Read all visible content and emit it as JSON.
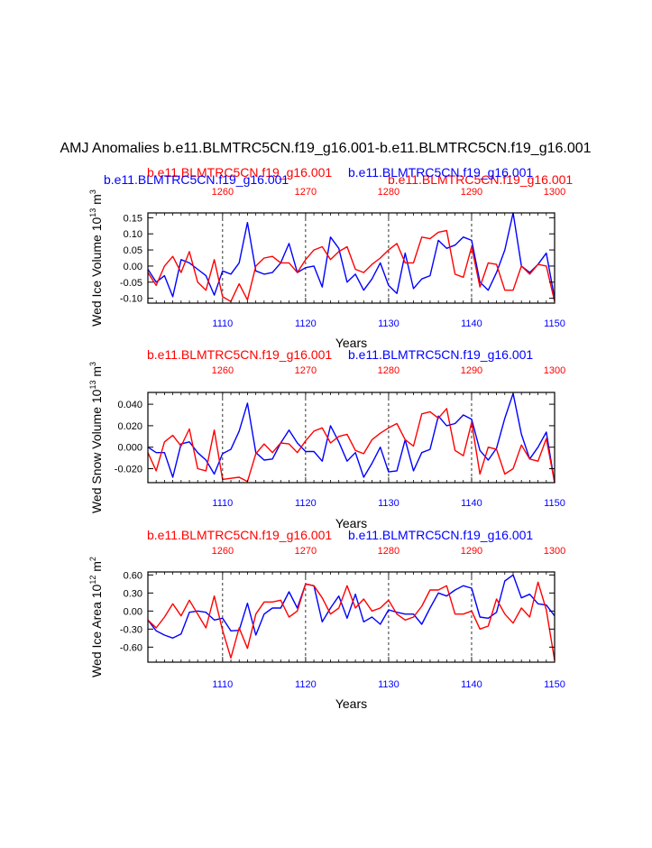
{
  "figure": {
    "title": "AMJ Anomalies b.e11.BLMTRC5CN.f19_g16.001-b.e11.BLMTRC5CN.f19_g16.001",
    "xlabel": "Years"
  },
  "colors": {
    "series_blue": "#0000ff",
    "series_red": "#ff0000",
    "axis": "#000000",
    "grid": "#000000"
  },
  "chart_data": [
    {
      "type": "line",
      "name": "ice-volume",
      "ylabel": "Wed Ice Volume 10",
      "ylabel_sup": "13",
      "ylabel_unit": " m",
      "ylabel_unit_sup": "3",
      "xlabel": "Years",
      "ylim": [
        -0.115,
        0.165
      ],
      "yticks": [
        -0.1,
        -0.05,
        0.0,
        0.05,
        0.1,
        0.15
      ],
      "yticklabels": [
        "-0.10",
        "-0.05",
        "0.00",
        "0.05",
        "0.10",
        "0.15"
      ],
      "bottom_axis": {
        "xlim": [
          1101,
          1150
        ],
        "ticks": [
          1110,
          1120,
          1130,
          1140,
          1150
        ],
        "labels": [
          "1110",
          "1120",
          "1130",
          "1140",
          "1150"
        ]
      },
      "top_axis": {
        "xlim": [
          1251,
          1300
        ],
        "ticks": [
          1260,
          1270,
          1280,
          1290,
          1300
        ],
        "labels": [
          "1260",
          "1270",
          "1280",
          "1290",
          "1300"
        ]
      },
      "gridlines_x": [
        1110,
        1120,
        1130,
        1140
      ],
      "legend": {
        "red": "b.e11.BLMTRC5CN.f19_g16.001",
        "blue": "b.e11.BLMTRC5CN.f19_g16.001"
      },
      "series": [
        {
          "name": "b.e11.BLMTRC5CN.f19_g16.001",
          "color": "blue",
          "axis": "bottom",
          "values": [
            -0.01,
            -0.05,
            -0.03,
            -0.095,
            0.02,
            0.01,
            -0.01,
            -0.03,
            -0.09,
            -0.015,
            -0.025,
            0.01,
            0.135,
            -0.015,
            -0.025,
            -0.02,
            0.01,
            0.07,
            -0.02,
            -0.005,
            0,
            -0.065,
            0.09,
            0.055,
            -0.05,
            -0.025,
            -0.075,
            -0.04,
            0.01,
            -0.06,
            -0.085,
            0.04,
            -0.07,
            -0.04,
            -0.03,
            0.08,
            0.055,
            0.065,
            0.09,
            0.08,
            -0.05,
            -0.075,
            -0.02,
            0.05,
            0.165,
            0,
            -0.02,
            0.005,
            0.04,
            -0.1
          ]
        },
        {
          "name": "b.e11.BLMTRC5CN.f19_g16.001",
          "color": "red",
          "axis": "top",
          "values": [
            -0.02,
            -0.06,
            0.0,
            0.03,
            -0.02,
            0.045,
            -0.05,
            -0.075,
            0.02,
            -0.095,
            -0.11,
            -0.055,
            -0.105,
            0.0,
            0.025,
            0.03,
            0.01,
            0.01,
            -0.02,
            0.02,
            0.05,
            0.06,
            0.02,
            0.045,
            0.06,
            -0.01,
            -0.02,
            0.005,
            0.025,
            0.05,
            0.07,
            0.01,
            0.01,
            0.09,
            0.085,
            0.105,
            0.11,
            -0.025,
            -0.035,
            0.06,
            -0.065,
            0.01,
            0.005,
            -0.075,
            -0.075,
            0.0,
            -0.025,
            0.005,
            0.0,
            -0.11
          ]
        }
      ]
    },
    {
      "type": "line",
      "name": "snow-volume",
      "ylabel": "Wed Snow Volume 10",
      "ylabel_sup": "13",
      "ylabel_unit": " m",
      "ylabel_unit_sup": "3",
      "xlabel": "Years",
      "ylim": [
        -0.033,
        0.051
      ],
      "yticks": [
        -0.02,
        0.0,
        0.02,
        0.04
      ],
      "yticklabels": [
        "-0.020",
        "0.000",
        "0.020",
        "0.040"
      ],
      "bottom_axis": {
        "xlim": [
          1101,
          1150
        ],
        "ticks": [
          1110,
          1120,
          1130,
          1140,
          1150
        ],
        "labels": [
          "1110",
          "1120",
          "1130",
          "1140",
          "1150"
        ]
      },
      "top_axis": {
        "xlim": [
          1251,
          1300
        ],
        "ticks": [
          1260,
          1270,
          1280,
          1290,
          1300
        ],
        "labels": [
          "1260",
          "1270",
          "1280",
          "1290",
          "1300"
        ]
      },
      "gridlines_x": [
        1110,
        1120,
        1130,
        1140
      ],
      "legend": {
        "red": "b.e11.BLMTRC5CN.f19_g16.001",
        "blue": "b.e11.BLMTRC5CN.f19_g16.001"
      },
      "series": [
        {
          "name": "b.e11.BLMTRC5CN.f19_g16.001",
          "color": "blue",
          "axis": "bottom",
          "values": [
            0.0,
            -0.005,
            -0.005,
            -0.028,
            0.003,
            0.005,
            -0.005,
            -0.012,
            -0.025,
            -0.006,
            -0.002,
            0.015,
            0.041,
            -0.005,
            -0.012,
            -0.011,
            0.004,
            0.016,
            0.004,
            -0.004,
            -0.004,
            -0.013,
            0.02,
            0.005,
            -0.013,
            -0.005,
            -0.028,
            -0.015,
            0.0,
            -0.023,
            -0.022,
            0.007,
            -0.022,
            -0.005,
            -0.002,
            0.029,
            0.02,
            0.022,
            0.03,
            0.026,
            -0.003,
            -0.012,
            -0.001,
            0.027,
            0.05,
            0.012,
            -0.011,
            0.0,
            0.014,
            -0.033
          ]
        },
        {
          "name": "b.e11.BLMTRC5CN.f19_g16.001",
          "color": "red",
          "axis": "top",
          "values": [
            -0.005,
            -0.022,
            0.005,
            0.011,
            0.001,
            0.017,
            -0.02,
            -0.022,
            0.016,
            -0.03,
            -0.029,
            -0.028,
            -0.032,
            -0.006,
            0.003,
            -0.005,
            0.004,
            0.003,
            -0.005,
            0.006,
            0.015,
            0.018,
            0.004,
            0.01,
            0.012,
            -0.003,
            -0.006,
            0.007,
            0.013,
            0.018,
            0.022,
            0.007,
            0.001,
            0.031,
            0.033,
            0.027,
            0.036,
            -0.003,
            -0.008,
            0.023,
            -0.025,
            0.0,
            -0.002,
            -0.025,
            -0.02,
            0.002,
            -0.011,
            -0.013,
            0.008,
            -0.033
          ]
        }
      ]
    },
    {
      "type": "line",
      "name": "ice-area",
      "ylabel": "Wed Ice Area 10",
      "ylabel_sup": "12",
      "ylabel_unit": " m",
      "ylabel_unit_sup": "2",
      "xlabel": "Years",
      "ylim": [
        -0.85,
        0.65
      ],
      "yticks": [
        -0.6,
        -0.3,
        0.0,
        0.3,
        0.6
      ],
      "yticklabels": [
        "-0.60",
        "-0.30",
        "0.00",
        "0.30",
        "0.60"
      ],
      "bottom_axis": {
        "xlim": [
          1101,
          1150
        ],
        "ticks": [
          1110,
          1120,
          1130,
          1140,
          1150
        ],
        "labels": [
          "1110",
          "1120",
          "1130",
          "1140",
          "1150"
        ]
      },
      "top_axis": {
        "xlim": [
          1251,
          1300
        ],
        "ticks": [
          1260,
          1270,
          1280,
          1290,
          1300
        ],
        "labels": [
          "1260",
          "1270",
          "1280",
          "1290",
          "1300"
        ]
      },
      "gridlines_x": [
        1110,
        1120,
        1130,
        1140
      ],
      "legend": {
        "red": "b.e11.BLMTRC5CN.f19_g16.001",
        "blue": "b.e11.BLMTRC5CN.f19_g16.001"
      },
      "series": [
        {
          "name": "b.e11.BLMTRC5CN.f19_g16.001",
          "color": "blue",
          "axis": "bottom",
          "values": [
            -0.15,
            -0.33,
            -0.4,
            -0.45,
            -0.38,
            -0.02,
            0.0,
            -0.02,
            -0.15,
            -0.12,
            -0.33,
            -0.32,
            0.13,
            -0.4,
            -0.05,
            0.05,
            0.05,
            0.32,
            0.05,
            0.45,
            0.42,
            -0.18,
            0.05,
            0.25,
            -0.12,
            0.28,
            -0.18,
            -0.1,
            -0.22,
            0.02,
            -0.02,
            -0.05,
            -0.05,
            -0.22,
            0.05,
            0.3,
            0.25,
            0.35,
            0.42,
            0.38,
            -0.1,
            -0.12,
            -0.02,
            0.5,
            0.6,
            0.22,
            0.28,
            0.12,
            0.1,
            -0.08
          ]
        },
        {
          "name": "b.e11.BLMTRC5CN.f19_g16.001",
          "color": "red",
          "axis": "top",
          "values": [
            -0.15,
            -0.28,
            -0.1,
            0.12,
            -0.08,
            0.18,
            -0.05,
            -0.28,
            0.25,
            -0.32,
            -0.78,
            -0.28,
            -0.62,
            -0.05,
            0.15,
            0.15,
            0.18,
            -0.1,
            0.0,
            0.45,
            0.42,
            0.22,
            -0.05,
            0.05,
            0.42,
            0.05,
            0.2,
            0.0,
            0.05,
            0.18,
            -0.05,
            -0.15,
            -0.1,
            0.08,
            0.35,
            0.35,
            0.42,
            -0.05,
            -0.05,
            0.0,
            -0.3,
            -0.25,
            0.2,
            -0.05,
            -0.2,
            0.05,
            -0.1,
            0.48,
            0.02,
            -0.82
          ]
        }
      ]
    }
  ]
}
